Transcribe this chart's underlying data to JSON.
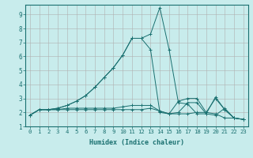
{
  "xlabel": "Humidex (Indice chaleur)",
  "background_color": "#c8ecec",
  "grid_color": "#b0b0b0",
  "line_color": "#1a7070",
  "xlim": [
    -0.5,
    23.5
  ],
  "ylim": [
    1,
    9.7
  ],
  "yticks": [
    1,
    2,
    3,
    4,
    5,
    6,
    7,
    8,
    9
  ],
  "xticks": [
    0,
    1,
    2,
    3,
    4,
    5,
    6,
    7,
    8,
    9,
    10,
    11,
    12,
    13,
    14,
    15,
    16,
    17,
    18,
    19,
    20,
    21,
    22,
    23
  ],
  "series": [
    {
      "x": [
        0,
        1,
        2,
        3,
        4,
        5,
        6,
        7,
        8,
        9,
        10,
        11,
        12,
        13,
        14,
        15,
        16,
        17,
        18,
        19,
        20,
        21,
        22,
        23
      ],
      "y": [
        1.8,
        2.2,
        2.2,
        2.3,
        2.5,
        2.8,
        3.2,
        3.8,
        4.5,
        5.2,
        6.1,
        7.3,
        7.3,
        7.6,
        9.5,
        6.5,
        2.7,
        2.6,
        1.9,
        1.9,
        1.8,
        2.3,
        1.6,
        1.5
      ]
    },
    {
      "x": [
        0,
        1,
        2,
        3,
        4,
        5,
        6,
        7,
        8,
        9,
        10,
        11,
        12,
        13,
        14,
        15,
        16,
        17,
        18,
        19,
        20,
        21,
        22,
        23
      ],
      "y": [
        1.8,
        2.2,
        2.2,
        2.3,
        2.5,
        2.8,
        3.2,
        3.8,
        4.5,
        5.2,
        6.1,
        7.3,
        7.3,
        6.5,
        2.0,
        1.9,
        2.8,
        3.0,
        3.0,
        2.0,
        3.0,
        2.2,
        1.6,
        1.5
      ]
    },
    {
      "x": [
        0,
        1,
        2,
        3,
        4,
        5,
        6,
        7,
        8,
        9,
        10,
        11,
        12,
        13,
        14,
        15,
        16,
        17,
        18,
        19,
        20,
        21,
        22,
        23
      ],
      "y": [
        1.8,
        2.2,
        2.2,
        2.2,
        2.3,
        2.3,
        2.3,
        2.3,
        2.3,
        2.3,
        2.4,
        2.5,
        2.5,
        2.5,
        2.1,
        1.9,
        2.0,
        2.7,
        2.7,
        1.9,
        3.1,
        2.2,
        1.6,
        1.5
      ]
    },
    {
      "x": [
        0,
        1,
        2,
        3,
        4,
        5,
        6,
        7,
        8,
        9,
        10,
        11,
        12,
        13,
        14,
        15,
        16,
        17,
        18,
        19,
        20,
        21,
        22,
        23
      ],
      "y": [
        1.8,
        2.2,
        2.2,
        2.2,
        2.2,
        2.2,
        2.2,
        2.2,
        2.2,
        2.2,
        2.2,
        2.2,
        2.2,
        2.3,
        2.1,
        1.9,
        1.9,
        1.9,
        2.0,
        2.0,
        1.9,
        1.6,
        1.6,
        1.5
      ]
    }
  ]
}
